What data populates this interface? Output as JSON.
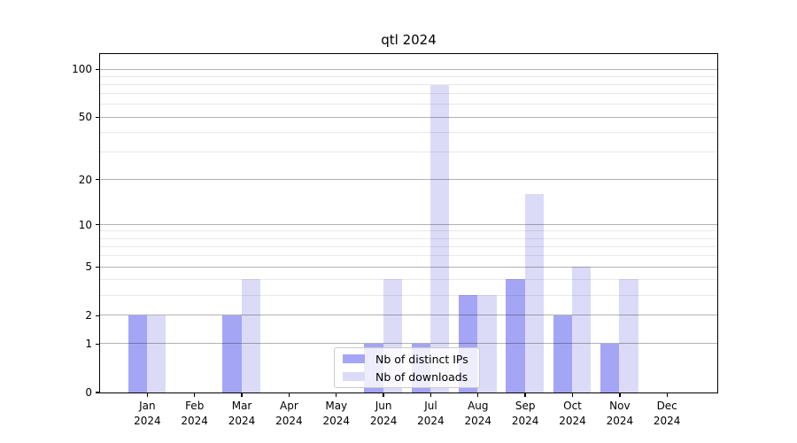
{
  "title": "qtl 2024",
  "chart_data": {
    "type": "bar",
    "title": "qtl 2024",
    "x_tick_labels": [
      {
        "month": "Jan",
        "year": "2024"
      },
      {
        "month": "Feb",
        "year": "2024"
      },
      {
        "month": "Mar",
        "year": "2024"
      },
      {
        "month": "Apr",
        "year": "2024"
      },
      {
        "month": "May",
        "year": "2024"
      },
      {
        "month": "Jun",
        "year": "2024"
      },
      {
        "month": "Jul",
        "year": "2024"
      },
      {
        "month": "Aug",
        "year": "2024"
      },
      {
        "month": "Sep",
        "year": "2024"
      },
      {
        "month": "Oct",
        "year": "2024"
      },
      {
        "month": "Nov",
        "year": "2024"
      },
      {
        "month": "Dec",
        "year": "2024"
      }
    ],
    "series": [
      {
        "name": "Nb of distinct IPs",
        "color": "#a5a5f6",
        "values": [
          2,
          0,
          2,
          0,
          0,
          1,
          1,
          3,
          4,
          2,
          1,
          0
        ]
      },
      {
        "name": "Nb of downloads",
        "color": "#dbdbf8",
        "values": [
          2,
          0,
          4,
          0,
          0,
          4,
          80,
          3,
          16,
          5,
          4,
          0
        ]
      }
    ],
    "y_axis": {
      "scale": "log1p",
      "ticks": [
        0,
        1,
        2,
        5,
        10,
        20,
        50,
        100
      ],
      "minor_ticks": [
        3,
        4,
        6,
        7,
        8,
        9,
        30,
        40,
        60,
        70,
        80,
        90
      ],
      "max": 125
    },
    "grid": "on",
    "legend_position": "lower center"
  }
}
